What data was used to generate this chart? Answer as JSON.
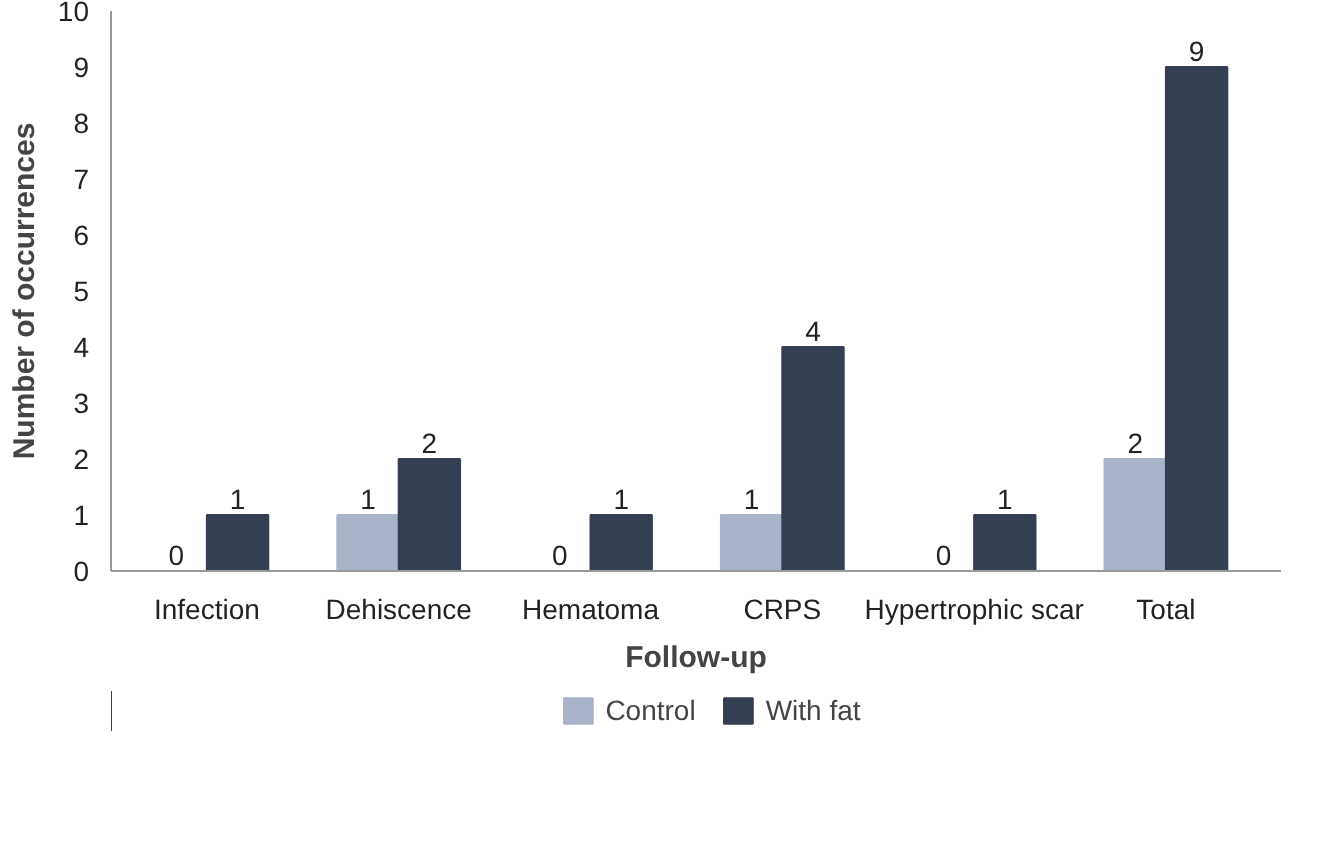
{
  "chart_data": {
    "type": "bar",
    "xlabel": "Follow-up",
    "ylabel": "Number of occurrences",
    "categories": [
      "Infection",
      "Dehiscence",
      "Hematoma",
      "CRPS",
      "Hypertrophic scar",
      "Total"
    ],
    "series": [
      {
        "name": "Control",
        "color": "#a9b4c8",
        "values": [
          0,
          1,
          0,
          1,
          0,
          2
        ]
      },
      {
        "name": "With fat",
        "color": "#343f51",
        "values": [
          1,
          2,
          1,
          4,
          1,
          9
        ]
      }
    ],
    "ylim": [
      0,
      10
    ],
    "yticks": [
      0,
      1,
      2,
      3,
      4,
      5,
      6,
      7,
      8,
      9,
      10
    ],
    "grid": false,
    "legend": "bottom",
    "data_labels": true
  }
}
